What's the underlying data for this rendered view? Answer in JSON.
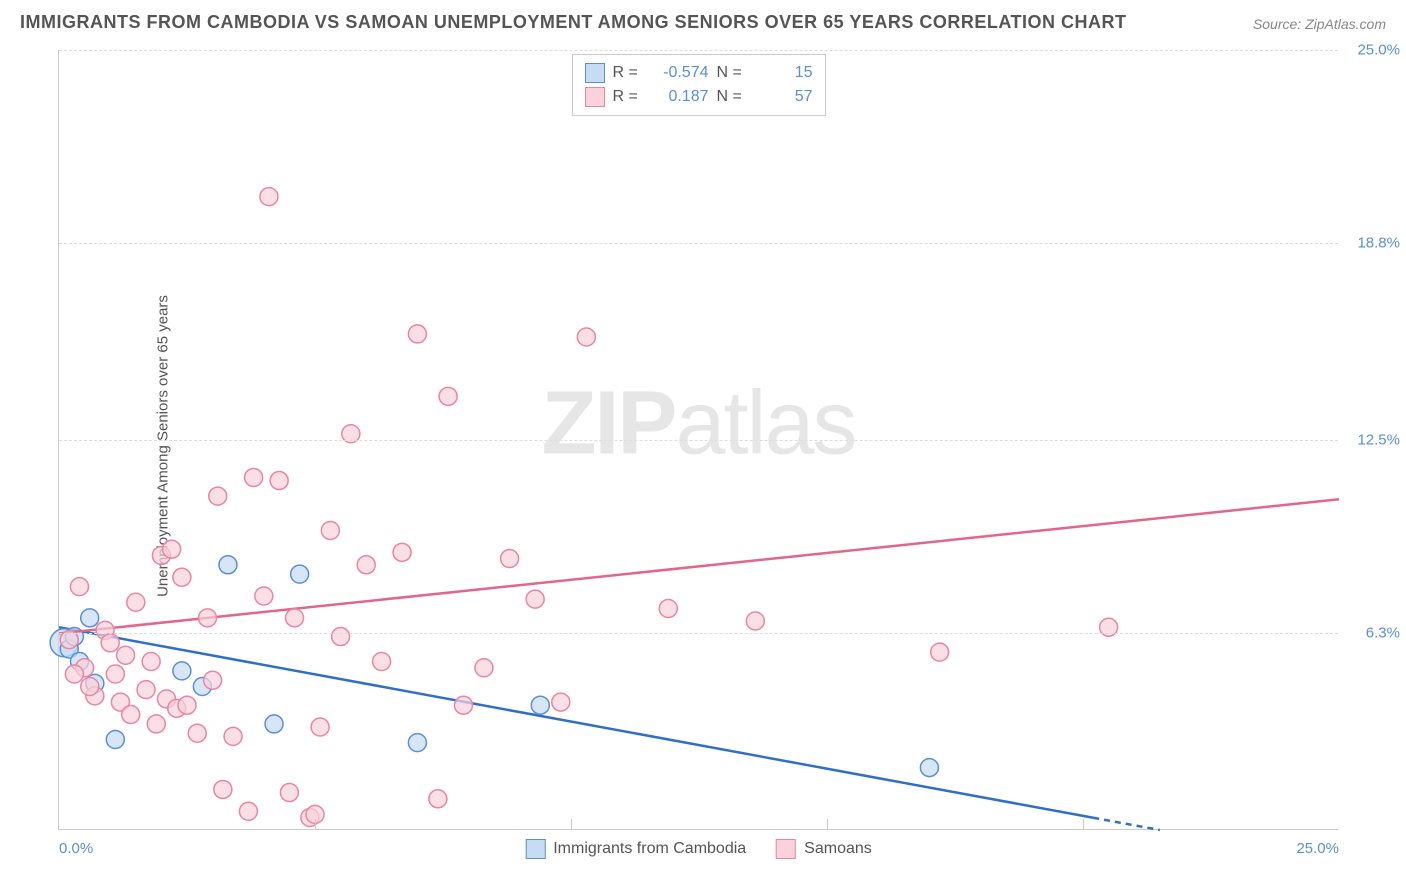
{
  "title": "IMMIGRANTS FROM CAMBODIA VS SAMOAN UNEMPLOYMENT AMONG SENIORS OVER 65 YEARS CORRELATION CHART",
  "source": "Source: ZipAtlas.com",
  "ylabel": "Unemployment Among Seniors over 65 years",
  "watermark_bold": "ZIP",
  "watermark_rest": "atlas",
  "chart": {
    "type": "scatter",
    "xlim": [
      0,
      25
    ],
    "ylim": [
      0,
      25
    ],
    "xticks": [
      0,
      5,
      10,
      15,
      20,
      25
    ],
    "xtick_labels": [
      "0.0%",
      "",
      "",
      "",
      "",
      "25.0%"
    ],
    "yticks": [
      6.3,
      12.5,
      18.8,
      25.0
    ],
    "ytick_labels": [
      "6.3%",
      "12.5%",
      "18.8%",
      "25.0%"
    ],
    "grid_color": "#dddddd",
    "axis_color": "#cccccc",
    "background": "#ffffff",
    "marker_radius": 9,
    "marker_stroke_width": 1.5,
    "trend_line_width": 2.5
  },
  "series": [
    {
      "name": "Immigrants from Cambodia",
      "fill": "#c6dcf2",
      "stroke": "#5b8fd6",
      "line_color": "#2f6fc8",
      "R": "-0.574",
      "N": "15",
      "trend": {
        "x1": 0,
        "y1": 6.5,
        "x2": 21.5,
        "y2": 0,
        "dash_after_x": 20.2
      },
      "points": [
        {
          "x": 0.1,
          "y": 6.0,
          "r": 14
        },
        {
          "x": 0.2,
          "y": 5.8
        },
        {
          "x": 0.3,
          "y": 6.2
        },
        {
          "x": 3.3,
          "y": 8.5
        },
        {
          "x": 2.4,
          "y": 5.1
        },
        {
          "x": 1.1,
          "y": 2.9
        },
        {
          "x": 4.2,
          "y": 3.4
        },
        {
          "x": 2.8,
          "y": 4.6
        },
        {
          "x": 7.0,
          "y": 2.8
        },
        {
          "x": 4.7,
          "y": 8.2
        },
        {
          "x": 0.4,
          "y": 5.4
        },
        {
          "x": 0.6,
          "y": 6.8
        },
        {
          "x": 0.7,
          "y": 4.7
        },
        {
          "x": 9.4,
          "y": 4.0
        },
        {
          "x": 17.0,
          "y": 2.0
        }
      ]
    },
    {
      "name": "Samoans",
      "fill": "#f9d2dc",
      "stroke": "#e986a3",
      "line_color": "#e2668b",
      "R": "0.187",
      "N": "57",
      "trend": {
        "x1": 0,
        "y1": 6.3,
        "x2": 25,
        "y2": 10.6
      },
      "points": [
        {
          "x": 0.2,
          "y": 6.1
        },
        {
          "x": 0.4,
          "y": 7.8
        },
        {
          "x": 0.5,
          "y": 5.2
        },
        {
          "x": 0.7,
          "y": 4.3
        },
        {
          "x": 0.9,
          "y": 6.4
        },
        {
          "x": 1.1,
          "y": 5.0
        },
        {
          "x": 1.2,
          "y": 4.1
        },
        {
          "x": 1.4,
          "y": 3.7
        },
        {
          "x": 1.5,
          "y": 7.3
        },
        {
          "x": 1.7,
          "y": 4.5
        },
        {
          "x": 1.8,
          "y": 5.4
        },
        {
          "x": 1.9,
          "y": 3.4
        },
        {
          "x": 2.0,
          "y": 8.8
        },
        {
          "x": 2.1,
          "y": 4.2
        },
        {
          "x": 2.2,
          "y": 9.0
        },
        {
          "x": 2.3,
          "y": 3.9
        },
        {
          "x": 2.4,
          "y": 8.1
        },
        {
          "x": 2.5,
          "y": 4.0
        },
        {
          "x": 2.7,
          "y": 3.1
        },
        {
          "x": 2.9,
          "y": 6.8
        },
        {
          "x": 3.1,
          "y": 10.7
        },
        {
          "x": 3.2,
          "y": 1.3
        },
        {
          "x": 3.4,
          "y": 3.0
        },
        {
          "x": 3.0,
          "y": 4.8
        },
        {
          "x": 3.7,
          "y": 0.6
        },
        {
          "x": 3.8,
          "y": 11.3
        },
        {
          "x": 4.0,
          "y": 7.5
        },
        {
          "x": 4.1,
          "y": 20.3
        },
        {
          "x": 4.3,
          "y": 11.2
        },
        {
          "x": 4.5,
          "y": 1.2
        },
        {
          "x": 4.6,
          "y": 6.8
        },
        {
          "x": 4.9,
          "y": 0.4
        },
        {
          "x": 5.0,
          "y": 0.5
        },
        {
          "x": 5.1,
          "y": 3.3
        },
        {
          "x": 5.3,
          "y": 9.6
        },
        {
          "x": 5.5,
          "y": 6.2
        },
        {
          "x": 5.7,
          "y": 12.7
        },
        {
          "x": 6.0,
          "y": 8.5
        },
        {
          "x": 6.3,
          "y": 5.4
        },
        {
          "x": 6.7,
          "y": 8.9
        },
        {
          "x": 7.0,
          "y": 15.9
        },
        {
          "x": 7.4,
          "y": 1.0
        },
        {
          "x": 7.6,
          "y": 13.9
        },
        {
          "x": 7.9,
          "y": 4.0
        },
        {
          "x": 8.3,
          "y": 5.2
        },
        {
          "x": 8.8,
          "y": 8.7
        },
        {
          "x": 9.3,
          "y": 7.4
        },
        {
          "x": 9.8,
          "y": 4.1
        },
        {
          "x": 10.3,
          "y": 15.8
        },
        {
          "x": 11.9,
          "y": 7.1
        },
        {
          "x": 13.6,
          "y": 6.7
        },
        {
          "x": 17.2,
          "y": 5.7
        },
        {
          "x": 20.5,
          "y": 6.5
        },
        {
          "x": 1.0,
          "y": 6.0
        },
        {
          "x": 1.3,
          "y": 5.6
        },
        {
          "x": 0.3,
          "y": 5.0
        },
        {
          "x": 0.6,
          "y": 4.6
        }
      ]
    }
  ],
  "legend_top_labels": {
    "R": "R =",
    "N": "N ="
  },
  "legend_bottom": [
    {
      "label": "Immigrants from Cambodia",
      "fill": "#c6dcf2",
      "stroke": "#5b8fd6"
    },
    {
      "label": "Samoans",
      "fill": "#f9d2dc",
      "stroke": "#e986a3"
    }
  ]
}
